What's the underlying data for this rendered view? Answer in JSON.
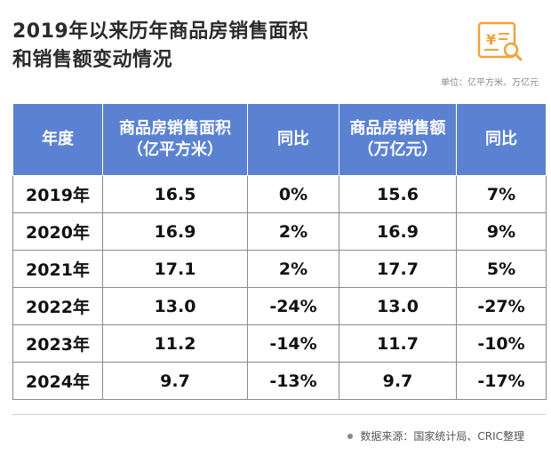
{
  "title": {
    "line1": "2019年以来历年商品房销售面积",
    "line2": "和销售额变动情况"
  },
  "unit_note": "单位：亿平方米、万亿元",
  "table": {
    "headers": [
      "年度",
      "商品房销售面积（亿平方米）",
      "同比",
      "商品房销售额（万亿元）",
      "同比"
    ],
    "header_lines": [
      [
        "年度"
      ],
      [
        "商品房销售面积",
        "（亿平方米）"
      ],
      [
        "同比"
      ],
      [
        "商品房销售额",
        "（万亿元）"
      ],
      [
        "同比"
      ]
    ],
    "rows": [
      [
        "2019年",
        "16.5",
        "0%",
        "15.6",
        "7%"
      ],
      [
        "2020年",
        "16.9",
        "2%",
        "16.9",
        "9%"
      ],
      [
        "2021年",
        "17.1",
        "2%",
        "17.7",
        "5%"
      ],
      [
        "2022年",
        "13.0",
        "-24%",
        "13.0",
        "-27%"
      ],
      [
        "2023年",
        "11.2",
        "-14%",
        "11.7",
        "-10%"
      ],
      [
        "2024年",
        "9.7",
        "-13%",
        "9.7",
        "-17%"
      ]
    ]
  },
  "source": "数据来源：国家统计局、CRIC整理",
  "colors": {
    "header_bg": "#5b82d2",
    "logo_accent": "#f0a23a",
    "title_text": "#2b2b2b"
  },
  "icons": {
    "logo": "yen-document-magnifier-icon",
    "source_bullet": "dot-icon"
  }
}
